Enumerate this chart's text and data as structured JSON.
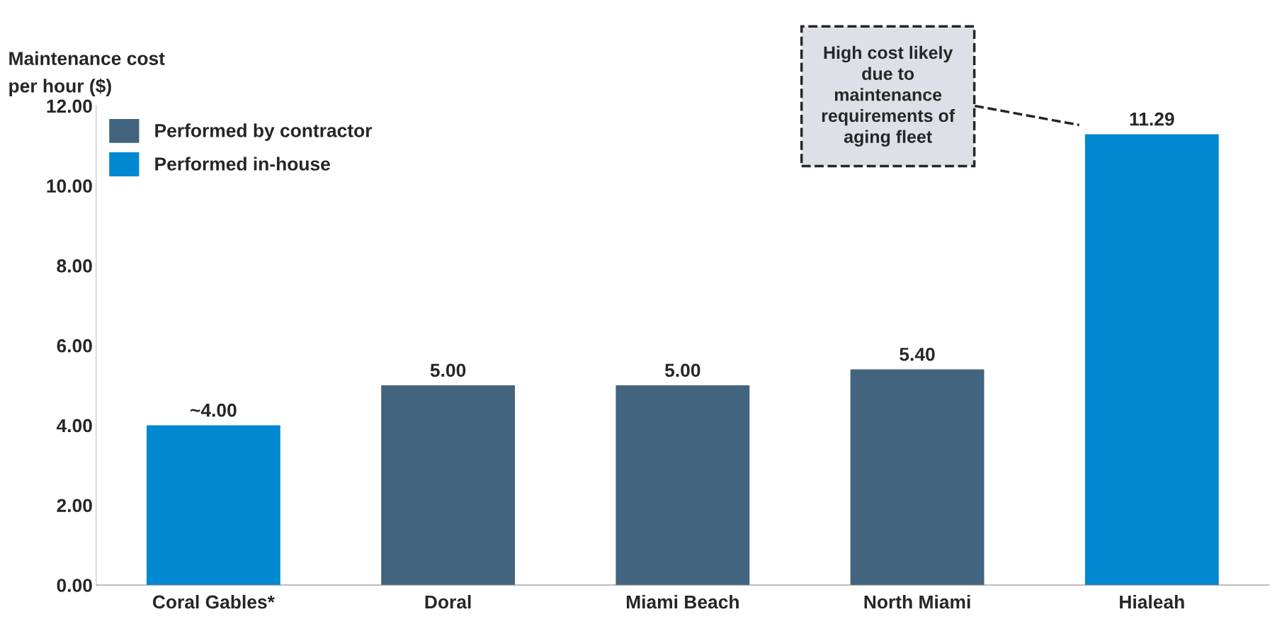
{
  "chart_data": {
    "type": "bar",
    "ylabel": "Maintenance cost\nper hour ($)",
    "categories": [
      "Coral Gables*",
      "Doral",
      "Miami Beach",
      "North Miami",
      "Hialeah"
    ],
    "stacked": true,
    "series": [
      {
        "name": "Performed by contractor",
        "color": "#42647e",
        "values": [
          null,
          5.0,
          5.0,
          5.4,
          null
        ],
        "value_labels": [
          null,
          "5.00",
          "5.00",
          "5.40",
          null
        ]
      },
      {
        "name": "Performed in-house",
        "color": "#0088d1",
        "values": [
          4.0,
          null,
          null,
          null,
          11.29
        ],
        "value_labels": [
          "~4.00",
          null,
          null,
          null,
          "11.29"
        ]
      }
    ],
    "ylim": [
      0,
      12
    ],
    "yticks": [
      {
        "value": 0,
        "label": "0.00"
      },
      {
        "value": 2,
        "label": "2.00"
      },
      {
        "value": 4,
        "label": "4.00"
      },
      {
        "value": 6,
        "label": "6.00"
      },
      {
        "value": 8,
        "label": "8.00"
      },
      {
        "value": 10,
        "label": "10.00"
      },
      {
        "value": 12,
        "label": "12.00"
      }
    ],
    "annotations": [
      "High cost likely\ndue to\nmaintenance\nrequirements of\naging fleet"
    ],
    "legend": "top left",
    "grid": false
  }
}
